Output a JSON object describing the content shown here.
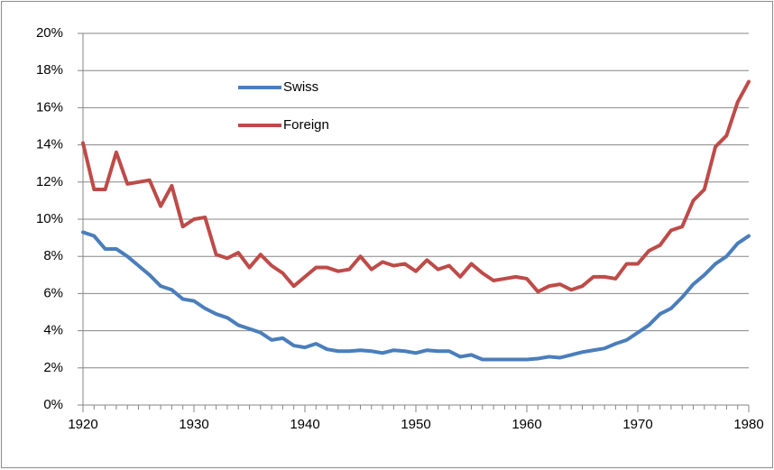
{
  "chart_data": {
    "type": "line",
    "x": [
      1920,
      1921,
      1922,
      1923,
      1924,
      1925,
      1926,
      1927,
      1928,
      1929,
      1930,
      1931,
      1932,
      1933,
      1934,
      1935,
      1936,
      1937,
      1938,
      1939,
      1940,
      1941,
      1942,
      1943,
      1944,
      1945,
      1946,
      1947,
      1948,
      1949,
      1950,
      1951,
      1952,
      1953,
      1954,
      1955,
      1956,
      1957,
      1958,
      1959,
      1960,
      1961,
      1962,
      1963,
      1964,
      1965,
      1966,
      1967,
      1968,
      1969,
      1970,
      1971,
      1972,
      1973,
      1974,
      1975,
      1976,
      1977,
      1978,
      1979,
      1980
    ],
    "series": [
      {
        "name": "Swiss",
        "color": "#4a7ebb",
        "values": [
          9.3,
          9.1,
          8.4,
          8.4,
          8.0,
          7.5,
          7.0,
          6.4,
          6.2,
          5.7,
          5.6,
          5.2,
          4.9,
          4.7,
          4.3,
          4.1,
          3.9,
          3.5,
          3.6,
          3.2,
          3.1,
          3.3,
          3.0,
          2.9,
          2.9,
          2.95,
          2.9,
          2.8,
          2.95,
          2.9,
          2.8,
          2.95,
          2.9,
          2.9,
          2.6,
          2.7,
          2.45,
          2.45,
          2.45,
          2.45,
          2.45,
          2.5,
          2.6,
          2.55,
          2.7,
          2.85,
          2.95,
          3.05,
          3.3,
          3.5,
          3.9,
          4.3,
          4.9,
          5.2,
          5.8,
          6.5,
          7.0,
          7.6,
          8.0,
          8.7,
          9.1
        ]
      },
      {
        "name": "Foreign",
        "color": "#be4b48",
        "values": [
          14.1,
          11.6,
          11.6,
          13.6,
          11.9,
          12.0,
          12.1,
          10.7,
          11.8,
          9.6,
          10.0,
          10.1,
          8.1,
          7.9,
          8.2,
          7.4,
          8.1,
          7.5,
          7.1,
          6.4,
          6.9,
          7.4,
          7.4,
          7.2,
          7.3,
          8.0,
          7.3,
          7.7,
          7.5,
          7.6,
          7.2,
          7.8,
          7.3,
          7.5,
          6.9,
          7.6,
          7.1,
          6.7,
          6.8,
          6.9,
          6.8,
          6.1,
          6.4,
          6.5,
          6.2,
          6.4,
          6.9,
          6.9,
          6.8,
          7.6,
          7.6,
          8.3,
          8.6,
          9.4,
          9.6,
          11.0,
          11.6,
          13.9,
          14.5,
          16.3,
          17.4
        ]
      }
    ],
    "xlim": [
      1920,
      1980
    ],
    "xticks": [
      1920,
      1930,
      1940,
      1950,
      1960,
      1970,
      1980
    ],
    "ylim": [
      0,
      20
    ],
    "yticks": [
      {
        "value": 0,
        "label": "0%"
      },
      {
        "value": 2,
        "label": "2%"
      },
      {
        "value": 4,
        "label": "4%"
      },
      {
        "value": 6,
        "label": "6%"
      },
      {
        "value": 8,
        "label": "8%"
      },
      {
        "value": 10,
        "label": "10%"
      },
      {
        "value": 12,
        "label": "12%"
      },
      {
        "value": 14,
        "label": "14%"
      },
      {
        "value": 16,
        "label": "16%"
      },
      {
        "value": 18,
        "label": "18%"
      },
      {
        "value": 20,
        "label": "20%"
      }
    ],
    "grid": true,
    "legend_position": "upper left"
  }
}
